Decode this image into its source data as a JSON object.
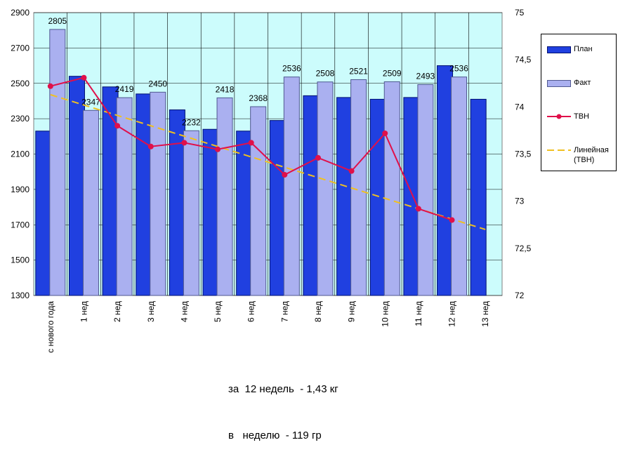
{
  "chart_data": {
    "type": "bar",
    "categories": [
      "с нового года",
      "1 нед",
      "2 нед",
      "3 нед",
      "4 нед",
      "5 нед",
      "6 нед",
      "7 нед",
      "8 нед",
      "9 нед",
      "10 нед",
      "11 нед",
      "12 нед",
      "13 нед"
    ],
    "series": [
      {
        "name": "План",
        "type": "bar",
        "axis": "left",
        "color": "#2040e0",
        "values": [
          2230,
          2540,
          2480,
          2440,
          2350,
          2240,
          2230,
          2290,
          2430,
          2420,
          2410,
          2420,
          2600,
          2410
        ]
      },
      {
        "name": "Факт",
        "type": "bar",
        "axis": "left",
        "color": "#aab0f0",
        "values": [
          2805,
          2347,
          2419,
          2450,
          2232,
          2418,
          2368,
          2536,
          2508,
          2521,
          2509,
          2493,
          2536,
          null
        ],
        "data_labels": [
          "2805",
          "2347",
          "2419",
          "2450",
          "2232",
          "2418",
          "2368",
          "2536",
          "2508",
          "2521",
          "2509",
          "2493",
          "2536",
          ""
        ]
      },
      {
        "name": "ТВН",
        "type": "line",
        "axis": "right",
        "color": "#e0104a",
        "values": [
          74.22,
          74.31,
          73.8,
          73.58,
          73.62,
          73.55,
          73.62,
          73.28,
          73.46,
          73.32,
          73.72,
          72.92,
          72.8,
          null
        ]
      },
      {
        "name": "Линейная\n(ТВН)",
        "type": "trendline",
        "axis": "right",
        "color": "#f0c020",
        "values": [
          74.13,
          74.02,
          73.91,
          73.8,
          73.69,
          73.58,
          73.47,
          73.36,
          73.25,
          73.14,
          73.03,
          72.92,
          72.81,
          72.7
        ]
      }
    ],
    "ylim_left": [
      1300,
      2900
    ],
    "yticks_left": [
      1300,
      1500,
      1700,
      1900,
      2100,
      2300,
      2500,
      2700,
      2900
    ],
    "ylim_right": [
      72,
      75
    ],
    "yticks_right": [
      "72",
      "72,5",
      "73",
      "73,5",
      "74",
      "74,5",
      "75"
    ],
    "grid": true,
    "plot_background": "#ccfcfc",
    "legend_position": "right"
  },
  "summary": {
    "line1": "за  12 недель  - 1,43 кг",
    "line2": "в   неделю  - 119 гр"
  }
}
